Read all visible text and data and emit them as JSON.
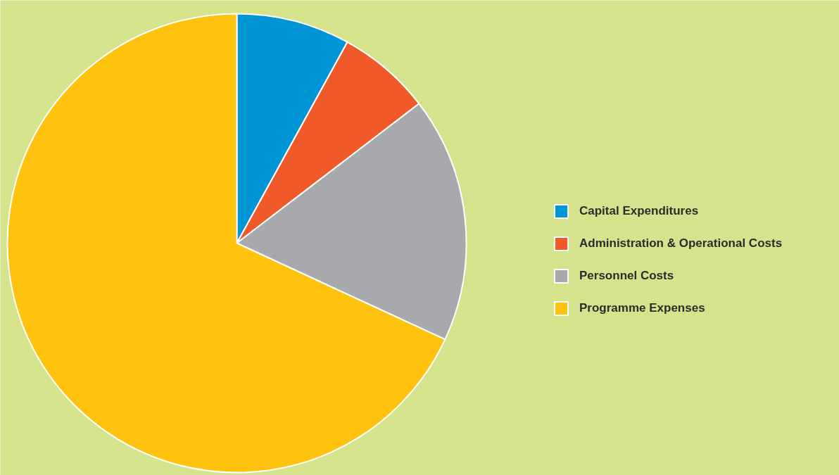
{
  "chart_data": {
    "type": "pie",
    "categories": [
      "Capital Expenditures",
      "Administration & Operational Costs",
      "Personnel Costs",
      "Programme Expenses"
    ],
    "values": [
      8.0,
      6.6,
      17.3,
      68.1
    ],
    "colors": [
      "#0096d6",
      "#f05a28",
      "#a7a9ac",
      "#ffc20e"
    ],
    "legend": "right"
  }
}
